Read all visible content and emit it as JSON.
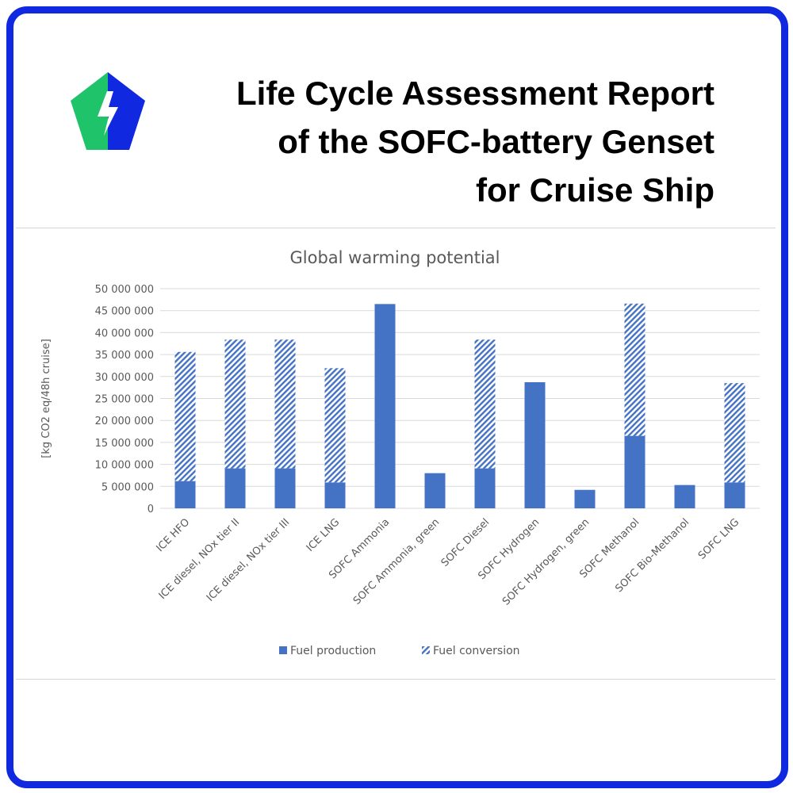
{
  "header": {
    "title_lines": [
      "Life Cycle Assessment Report",
      "of the SOFC-battery Genset",
      "for Cruise Ship"
    ]
  },
  "logo": {
    "colors": {
      "left": "#1fc46a",
      "right": "#1028e0",
      "bolt": "#ffffff"
    }
  },
  "colors": {
    "frame": "#1028e0",
    "bar": "#4472c4",
    "grid": "#d9d9d9",
    "text": "#595959"
  },
  "chart_data": {
    "type": "bar",
    "stacked": true,
    "title": "Global warming potential",
    "ylabel": "[kg CO2 eq/48h cruise]",
    "xlabel": "",
    "ylim": [
      0,
      50000000
    ],
    "ytick_labels": [
      "0",
      "5 000 000",
      "10 000 000",
      "15 000 000",
      "20 000 000",
      "25 000 000",
      "30 000 000",
      "35 000 000",
      "40 000 000",
      "45 000 000",
      "50 000 000"
    ],
    "categories": [
      "ICE HFO",
      "ICE diesel, NOx tier II",
      "ICE diesel, NOx tier III",
      "ICE LNG",
      "SOFC Ammonia",
      "SOFC Ammonia, green",
      "SOFC Diesel",
      "SOFC Hydrogen",
      "SOFC Hydrogen, green",
      "SOFC Methanol",
      "SOFC Bio-Methanol",
      "SOFC LNG"
    ],
    "series": [
      {
        "name": "Fuel production",
        "pattern": "solid",
        "values": [
          6200000,
          9100000,
          9100000,
          5900000,
          46500000,
          8000000,
          9100000,
          28700000,
          4200000,
          16500000,
          5300000,
          5900000
        ]
      },
      {
        "name": "Fuel conversion",
        "pattern": "hatched",
        "values": [
          29400000,
          29300000,
          29300000,
          26000000,
          0,
          0,
          29300000,
          0,
          0,
          30100000,
          0,
          22600000
        ]
      }
    ],
    "grid": true,
    "legend_position": "bottom"
  }
}
